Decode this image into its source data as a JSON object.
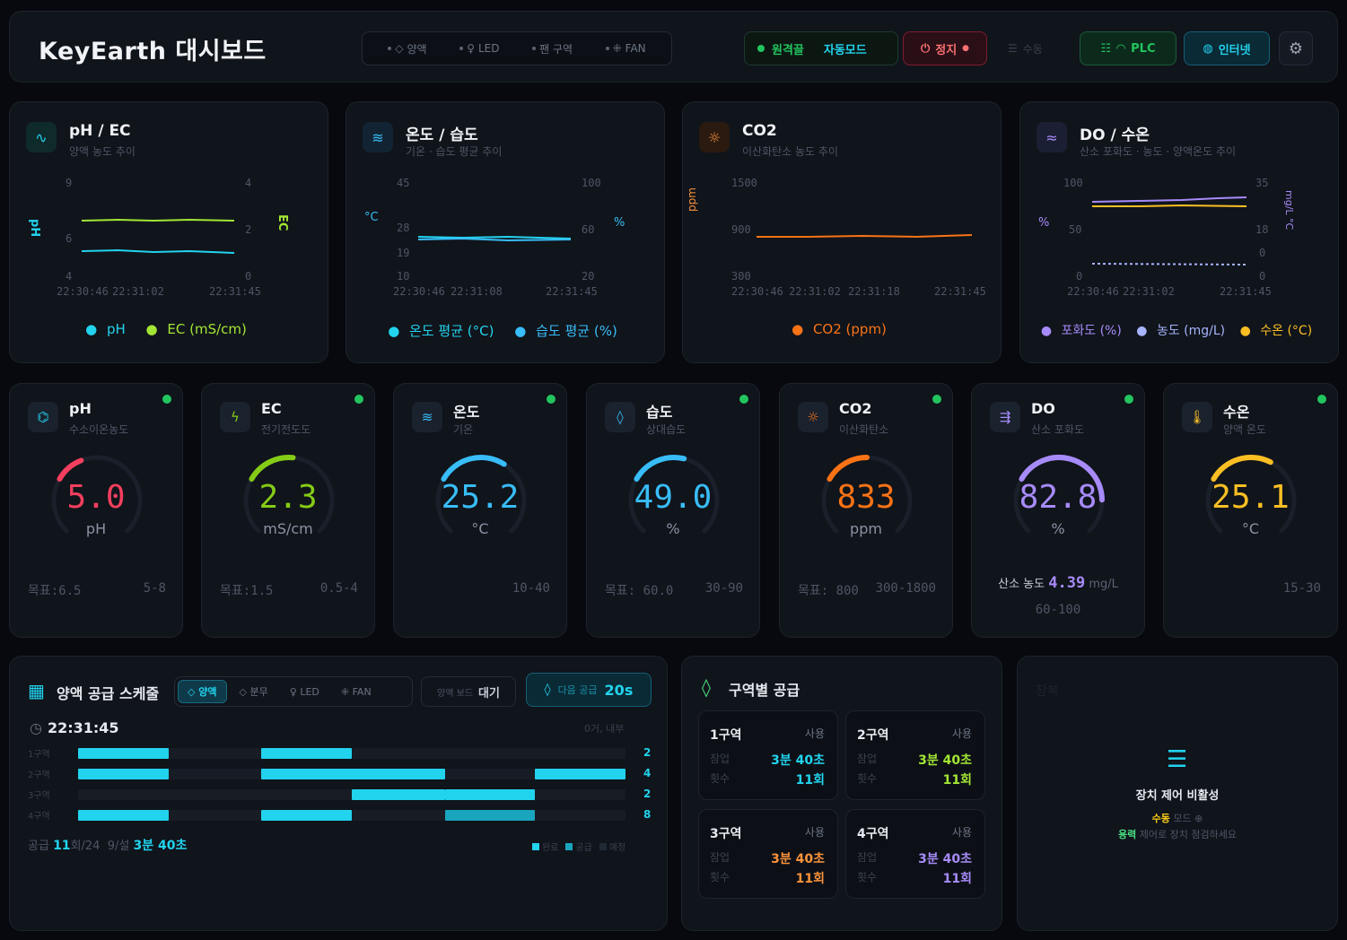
{
  "header": {
    "title": "KeyEarth 대시보드",
    "modes": [
      "양액",
      "LED",
      "팬 구역",
      "FAN"
    ],
    "status_connected": "원격끌",
    "status_mode": "자동모드",
    "stop_label": "정지",
    "menu_label": "수동",
    "plc_label": "PLC",
    "internet_label": "인터넷"
  },
  "charts": {
    "ph_ec": {
      "title": "pH / EC",
      "subtitle": "양액 농도 추이",
      "left_axis": "pH",
      "right_axis": "EC",
      "left_ticks": [
        "9",
        "6",
        "4"
      ],
      "right_ticks": [
        "4",
        "2",
        "0"
      ],
      "times": [
        "22:30:46",
        "22:31:02",
        "22:31:45"
      ],
      "legend": [
        "pH",
        "EC (mS/cm)"
      ]
    },
    "temp_hum": {
      "title": "온도 / 습도",
      "subtitle": "기온 · 습도 평균 추이",
      "left_axis": "°C",
      "right_axis": "%",
      "left_ticks": [
        "45",
        "28",
        "19",
        "10"
      ],
      "right_ticks": [
        "100",
        "60",
        "20"
      ],
      "times": [
        "22:30:46",
        "22:31:08",
        "22:31:45"
      ],
      "legend": [
        "온도 평균 (°C)",
        "습도 평균 (%)"
      ]
    },
    "co2": {
      "title": "CO2",
      "subtitle": "이산화탄소 농도 추이",
      "left_axis": "ppm",
      "left_ticks": [
        "1500",
        "900",
        "300"
      ],
      "times": [
        "22:30:46",
        "22:31:02",
        "22:31:18",
        "22:31:45"
      ],
      "legend": [
        "CO2 (ppm)"
      ]
    },
    "do_wt": {
      "title": "DO / 수온",
      "subtitle": "산소 포화도 · 농도 · 양액온도 추이",
      "left_axis": "%",
      "right_axis": "mg/L °C",
      "left_ticks": [
        "100",
        "50",
        "0"
      ],
      "right_ticks": [
        "35",
        "18",
        "0",
        "0"
      ],
      "times": [
        "22:30:46",
        "22:31:02",
        "22:31:45"
      ],
      "legend": [
        "포화도 (%)",
        "농도 (mg/L)",
        "수온 (°C)"
      ]
    }
  },
  "chart_data": [
    {
      "type": "line",
      "title": "pH / EC",
      "x": [
        "22:30:46",
        "22:31:02",
        "22:31:45"
      ],
      "series": [
        {
          "name": "pH",
          "values": [
            5.0,
            5.0,
            5.0
          ]
        },
        {
          "name": "EC (mS/cm)",
          "values": [
            2.3,
            2.3,
            2.3
          ]
        }
      ]
    },
    {
      "type": "line",
      "title": "온도 / 습도",
      "x": [
        "22:30:46",
        "22:31:08",
        "22:31:45"
      ],
      "series": [
        {
          "name": "온도 평균 (°C)",
          "values": [
            25.2,
            25.2,
            25.2
          ]
        },
        {
          "name": "습도 평균 (%)",
          "values": [
            49.0,
            49.0,
            49.0
          ]
        }
      ]
    },
    {
      "type": "line",
      "title": "CO2",
      "x": [
        "22:30:46",
        "22:31:02",
        "22:31:18",
        "22:31:45"
      ],
      "series": [
        {
          "name": "CO2 (ppm)",
          "values": [
            833,
            835,
            833,
            838
          ]
        }
      ]
    },
    {
      "type": "line",
      "title": "DO / 수온",
      "x": [
        "22:30:46",
        "22:31:02",
        "22:31:45"
      ],
      "series": [
        {
          "name": "포화도 (%)",
          "values": [
            82.8,
            83.0,
            85.0
          ]
        },
        {
          "name": "농도 (mg/L)",
          "values": [
            4.39,
            4.39,
            4.39
          ]
        },
        {
          "name": "수온 (°C)",
          "values": [
            25.1,
            25.1,
            25.1
          ]
        }
      ]
    }
  ],
  "gauges": [
    {
      "title": "pH",
      "subtitle": "수소이온농도",
      "value": "5.0",
      "unit": "pH",
      "target": "목표:6.5",
      "range": "5-8",
      "fraction": 0.42,
      "color": "#f43f5e"
    },
    {
      "title": "EC",
      "subtitle": "전기전도도",
      "value": "2.3",
      "unit": "mS/cm",
      "target": "목표:1.5",
      "range": "0.5-4",
      "fraction": 0.52,
      "color": "#84cc16"
    },
    {
      "title": "온도",
      "subtitle": "기온",
      "value": "25.2",
      "unit": "°C",
      "target": "",
      "range": "10-40",
      "fraction": 0.62,
      "color": "#38bdf8"
    },
    {
      "title": "습도",
      "subtitle": "상대습도",
      "value": "49.0",
      "unit": "%",
      "target": "목표: 60.0",
      "range": "30-90",
      "fraction": 0.55,
      "color": "#38bdf8"
    },
    {
      "title": "CO2",
      "subtitle": "이산화탄소",
      "value": "833",
      "unit": "ppm",
      "target": "목표: 800",
      "range": "300-1800",
      "fraction": 0.5,
      "color": "#f97316"
    },
    {
      "title": "DO",
      "subtitle": "산소 포화도",
      "value": "82.8",
      "unit": "%",
      "target": "",
      "range": "60-100",
      "fraction": 0.83,
      "color": "#a78bfa",
      "extra_label": "산소 농도",
      "extra_value": "4.39",
      "extra_unit": "mg/L"
    },
    {
      "title": "수온",
      "subtitle": "양액 온도",
      "value": "25.1",
      "unit": "°C",
      "target": "",
      "range": "15-30",
      "fraction": 0.6,
      "color": "#fbbf24"
    }
  ],
  "schedule": {
    "title": "양액 공급 스케줄",
    "tabs": [
      "양액",
      "분무",
      "LED",
      "FAN"
    ],
    "wait_label": "양액 보드",
    "wait_value": "대기",
    "next_label": "다음 공급",
    "next_value": "20s",
    "time": "22:31:45",
    "reset_label": "0거, 내부",
    "rows": [
      {
        "label": "1구역",
        "count": "2",
        "bars": [
          [
            0,
            0.165
          ],
          [
            0.335,
            0.5
          ]
        ]
      },
      {
        "label": "2구역",
        "count": "4",
        "bars": [
          [
            0,
            0.165
          ],
          [
            0.335,
            0.67
          ],
          [
            0.835,
            1.0
          ]
        ]
      },
      {
        "label": "3구역",
        "count": "2",
        "bars": [
          [
            0.5,
            0.67
          ],
          [
            0.67,
            0.835
          ]
        ]
      },
      {
        "label": "4구역",
        "count": "8",
        "bars": [
          [
            0,
            0.165
          ],
          [
            0.335,
            0.5
          ],
          [
            0.67,
            0.835
          ]
        ]
      }
    ],
    "summary_prefix": "공급",
    "summary_count": "11",
    "summary_total": "회/24",
    "summary_mid": "9/설",
    "summary_time": "3분 40초",
    "legend": [
      "완료",
      "공급",
      "예정"
    ]
  },
  "zones": {
    "title": "구역별 공급",
    "items": [
      {
        "name": "1구역",
        "status": "사용",
        "time_label": "잠업",
        "time": "3분 40초",
        "count_label": "횟수",
        "count": "11회",
        "color": "#22d3ee"
      },
      {
        "name": "2구역",
        "status": "사용",
        "time_label": "잠업",
        "time": "3분 40초",
        "count_label": "횟수",
        "count": "11회",
        "color": "#a3e635"
      },
      {
        "name": "3구역",
        "status": "사용",
        "time_label": "잠업",
        "time": "3분 40초",
        "count_label": "횟수",
        "count": "11회",
        "color": "#fb923c"
      },
      {
        "name": "4구역",
        "status": "사용",
        "time_label": "잠업",
        "time": "3분 40초",
        "count_label": "횟수",
        "count": "11회",
        "color": "#a78bfa"
      }
    ]
  },
  "device": {
    "faint_label": "잠복",
    "title": "장치 제어 비활성",
    "hint1_accent": "수동",
    "hint1_rest": "모드 ⊕",
    "hint2_accent": "용력",
    "hint2_rest": "제어로 장치 점검하세요"
  }
}
